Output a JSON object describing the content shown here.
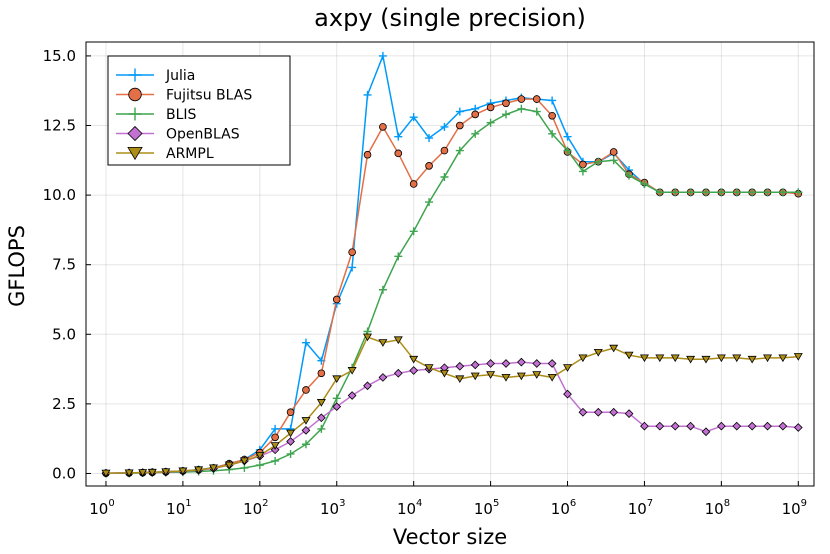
{
  "chart_data": {
    "type": "line",
    "title": "axpy (single precision)",
    "xlabel": "Vector size",
    "ylabel": "GFLOPS",
    "x_scale": "log10",
    "xlim": [
      0.55,
      1600000000.0
    ],
    "ylim": [
      -0.45,
      15.5
    ],
    "x_ticks": [
      {
        "value": 1,
        "base": "10",
        "exp": "0"
      },
      {
        "value": 10,
        "base": "10",
        "exp": "1"
      },
      {
        "value": 100,
        "base": "10",
        "exp": "2"
      },
      {
        "value": 1000,
        "base": "10",
        "exp": "3"
      },
      {
        "value": 10000,
        "base": "10",
        "exp": "4"
      },
      {
        "value": 100000,
        "base": "10",
        "exp": "5"
      },
      {
        "value": 1000000,
        "base": "10",
        "exp": "6"
      },
      {
        "value": 10000000,
        "base": "10",
        "exp": "7"
      },
      {
        "value": 100000000,
        "base": "10",
        "exp": "8"
      },
      {
        "value": 1000000000,
        "base": "10",
        "exp": "9"
      }
    ],
    "y_ticks": [
      {
        "value": 0,
        "label": "0.0"
      },
      {
        "value": 2.5,
        "label": "2.5"
      },
      {
        "value": 5,
        "label": "5.0"
      },
      {
        "value": 7.5,
        "label": "7.5"
      },
      {
        "value": 10,
        "label": "10.0"
      },
      {
        "value": 12.5,
        "label": "12.5"
      },
      {
        "value": 15,
        "label": "15.0"
      }
    ],
    "grid": true,
    "legend_position": "top-left",
    "x": [
      1,
      2,
      3,
      4,
      6,
      10,
      16,
      25,
      40,
      63,
      100,
      158,
      251,
      398,
      631,
      1000,
      1585,
      2512,
      3981,
      6310,
      10000,
      15849,
      25119,
      39811,
      63096,
      100000,
      158489,
      251189,
      398107,
      630957,
      1000000,
      1584893,
      2511886,
      3981072,
      6309573,
      10000000,
      15848932,
      25118864,
      39810717,
      63095734,
      100000000,
      158489319,
      251188643,
      398107171,
      630957344,
      1000000000
    ],
    "series": [
      {
        "name": "Julia",
        "color": "#009AFA",
        "marker": "cross",
        "values": [
          0.01,
          0.02,
          0.03,
          0.04,
          0.06,
          0.09,
          0.14,
          0.2,
          0.35,
          0.5,
          0.85,
          1.6,
          1.6,
          4.7,
          4.05,
          6.1,
          7.4,
          13.6,
          15.0,
          12.1,
          12.8,
          12.05,
          12.45,
          13.0,
          13.1,
          13.3,
          13.4,
          13.5,
          13.45,
          13.4,
          12.1,
          11.2,
          11.2,
          11.5,
          10.9,
          10.4,
          10.1,
          10.1,
          10.1,
          10.1,
          10.1,
          10.1,
          10.1,
          10.1,
          10.1,
          10.1
        ]
      },
      {
        "name": "Fujitsu BLAS",
        "color": "#E36F47",
        "marker": "circle",
        "values": [
          0.01,
          0.02,
          0.03,
          0.04,
          0.06,
          0.09,
          0.13,
          0.2,
          0.35,
          0.5,
          0.75,
          1.3,
          2.2,
          3.0,
          3.6,
          6.25,
          7.95,
          11.45,
          12.45,
          11.5,
          10.4,
          11.05,
          11.6,
          12.5,
          12.9,
          13.15,
          13.3,
          13.45,
          13.45,
          12.85,
          11.55,
          11.1,
          11.2,
          11.55,
          10.75,
          10.45,
          10.1,
          10.1,
          10.1,
          10.1,
          10.1,
          10.1,
          10.1,
          10.1,
          10.1,
          10.05
        ]
      },
      {
        "name": "BLIS",
        "color": "#3EA44E",
        "marker": "cross",
        "values": [
          0.01,
          0.01,
          0.02,
          0.03,
          0.04,
          0.05,
          0.07,
          0.1,
          0.14,
          0.2,
          0.3,
          0.45,
          0.7,
          1.05,
          1.6,
          2.7,
          3.8,
          5.1,
          6.6,
          7.8,
          8.7,
          9.75,
          10.65,
          11.6,
          12.2,
          12.6,
          12.9,
          13.1,
          13.0,
          12.2,
          11.6,
          10.85,
          11.2,
          11.25,
          10.7,
          10.4,
          10.1,
          10.1,
          10.1,
          10.1,
          10.1,
          10.1,
          10.1,
          10.1,
          10.1,
          10.1
        ]
      },
      {
        "name": "OpenBLAS",
        "color": "#C271D2",
        "marker": "diamond",
        "values": [
          0.01,
          0.02,
          0.03,
          0.04,
          0.05,
          0.08,
          0.12,
          0.18,
          0.3,
          0.45,
          0.62,
          0.85,
          1.15,
          1.55,
          2.0,
          2.4,
          2.8,
          3.15,
          3.45,
          3.6,
          3.7,
          3.75,
          3.8,
          3.85,
          3.9,
          3.95,
          3.95,
          4.0,
          3.95,
          3.95,
          2.85,
          2.2,
          2.2,
          2.2,
          2.15,
          1.7,
          1.7,
          1.7,
          1.7,
          1.5,
          1.7,
          1.7,
          1.7,
          1.7,
          1.7,
          1.65
        ]
      },
      {
        "name": "ARMPL",
        "color": "#AC8D18",
        "marker": "triangle-down",
        "values": [
          0.01,
          0.02,
          0.03,
          0.04,
          0.06,
          0.09,
          0.13,
          0.2,
          0.3,
          0.45,
          0.65,
          1.0,
          1.45,
          1.9,
          2.55,
          3.4,
          3.7,
          4.9,
          4.7,
          4.8,
          4.1,
          3.8,
          3.6,
          3.4,
          3.5,
          3.55,
          3.45,
          3.5,
          3.55,
          3.45,
          3.8,
          4.15,
          4.35,
          4.5,
          4.25,
          4.15,
          4.15,
          4.15,
          4.1,
          4.1,
          4.15,
          4.15,
          4.1,
          4.15,
          4.15,
          4.2
        ]
      }
    ]
  }
}
